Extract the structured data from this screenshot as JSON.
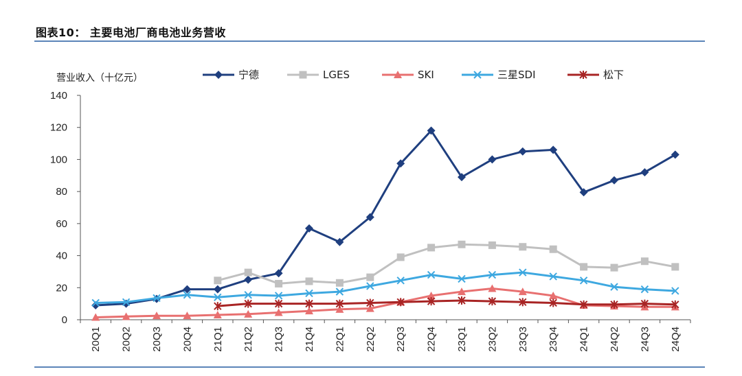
{
  "figure": {
    "title": "图表10：  主要电池厂商电池业务营收"
  },
  "chart_data": {
    "type": "line",
    "ylabel": "营业收入（十亿元）",
    "xlabel": "",
    "ylim": [
      0,
      140
    ],
    "yticks": [
      0,
      20,
      40,
      60,
      80,
      100,
      120,
      140
    ],
    "categories": [
      "20Q1",
      "20Q2",
      "20Q3",
      "20Q4",
      "21Q1",
      "21Q2",
      "21Q3",
      "21Q4",
      "22Q1",
      "22Q2",
      "22Q3",
      "22Q4",
      "23Q1",
      "23Q2",
      "23Q3",
      "23Q4",
      "24Q1",
      "24Q2",
      "24Q3",
      "24Q4"
    ],
    "legend_position": "top",
    "grid": false,
    "series": [
      {
        "name": "宁德",
        "color": "#1f3f7f",
        "marker": "diamond",
        "values": [
          9,
          10,
          13,
          19,
          19,
          25,
          29,
          57,
          48.5,
          64,
          97.5,
          118,
          89,
          100,
          105,
          106,
          79.5,
          87,
          92,
          103
        ]
      },
      {
        "name": "LGES",
        "color": "#c0c0c0",
        "marker": "square",
        "values": [
          null,
          null,
          null,
          null,
          24.5,
          29.5,
          22.5,
          24,
          23,
          26.5,
          39,
          45,
          47,
          46.5,
          45.5,
          44,
          33,
          32.5,
          36.5,
          33
        ]
      },
      {
        "name": "SKI",
        "color": "#e87070",
        "marker": "triangle",
        "values": [
          1.5,
          2,
          2.5,
          2.5,
          3,
          3.5,
          4.5,
          5.5,
          6.5,
          7,
          11,
          15,
          17.5,
          19.5,
          17.5,
          15,
          9,
          8.5,
          8,
          8
        ]
      },
      {
        "name": "三星SDI",
        "color": "#3ea8e0",
        "marker": "x",
        "values": [
          10.5,
          11,
          13.5,
          15.5,
          14,
          15.5,
          15,
          16.5,
          17.5,
          21,
          24.5,
          28,
          25.5,
          28,
          29.5,
          27,
          24.5,
          20.5,
          19,
          18
        ]
      },
      {
        "name": "松下",
        "color": "#a82424",
        "marker": "asterisk",
        "values": [
          null,
          null,
          null,
          null,
          8.5,
          10,
          10,
          10,
          10,
          10.5,
          11,
          11.5,
          12,
          11.5,
          11,
          10.5,
          9.5,
          9.5,
          10,
          9.5
        ]
      }
    ]
  }
}
